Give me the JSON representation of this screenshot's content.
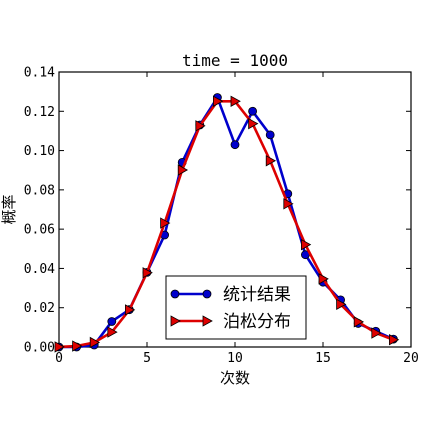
{
  "chart_data": {
    "type": "line",
    "title": "time = 1000",
    "xlabel": "次数",
    "ylabel": "概率",
    "xlim": [
      0,
      20
    ],
    "ylim": [
      0,
      0.14
    ],
    "x_ticks": [
      0,
      5,
      10,
      15,
      20
    ],
    "x_tick_labels": [
      "0",
      "5",
      "10",
      "15",
      "20"
    ],
    "y_ticks": [
      0.0,
      0.02,
      0.04,
      0.06,
      0.08,
      0.1,
      0.12,
      0.14
    ],
    "y_tick_labels": [
      "0.00",
      "0.02",
      "0.04",
      "0.06",
      "0.08",
      "0.10",
      "0.12",
      "0.14"
    ],
    "grid": false,
    "legend_position": "lower-center",
    "series": [
      {
        "name": "统计结果",
        "color": "#0000cc",
        "marker": "circle",
        "x": [
          0,
          1,
          2,
          3,
          4,
          5,
          6,
          7,
          8,
          9,
          10,
          11,
          12,
          13,
          14,
          15,
          16,
          17,
          18,
          19
        ],
        "y": [
          0.0,
          0.0,
          0.001,
          0.013,
          0.019,
          0.038,
          0.057,
          0.094,
          0.113,
          0.127,
          0.103,
          0.12,
          0.108,
          0.078,
          0.047,
          0.033,
          0.024,
          0.012,
          0.008,
          0.004
        ]
      },
      {
        "name": "泊松分布",
        "color": "#dd0000",
        "marker": "triangle-right",
        "x": [
          0,
          1,
          2,
          3,
          4,
          5,
          6,
          7,
          8,
          9,
          10,
          11,
          12,
          13,
          14,
          15,
          16,
          17,
          18,
          19
        ],
        "y": [
          5e-05,
          0.0005,
          0.0023,
          0.0076,
          0.0189,
          0.0378,
          0.0631,
          0.0901,
          0.1126,
          0.1251,
          0.1251,
          0.1137,
          0.0948,
          0.0729,
          0.0521,
          0.0347,
          0.0217,
          0.0128,
          0.0071,
          0.0037
        ]
      }
    ]
  }
}
